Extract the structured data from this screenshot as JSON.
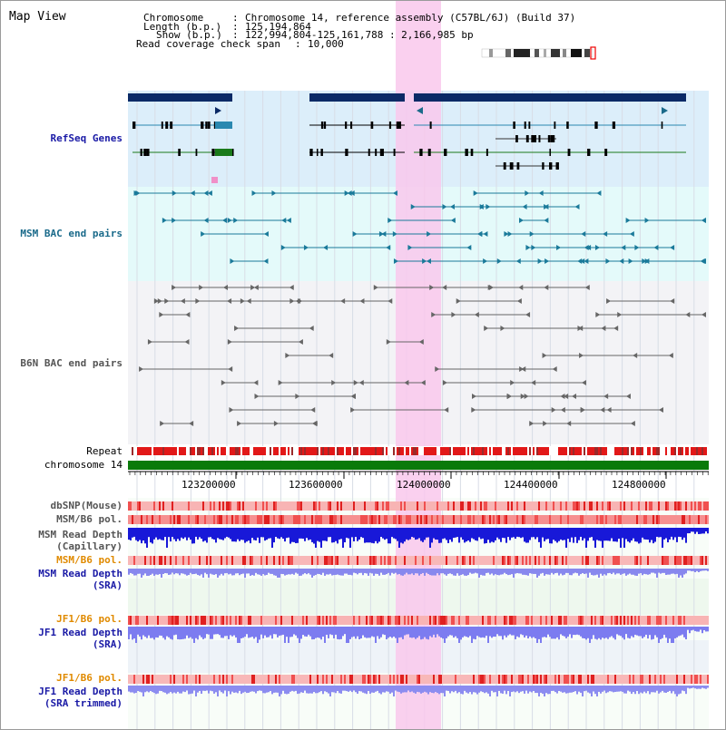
{
  "title": "Map View",
  "info": {
    "chromosome_key": "Chromosome",
    "chromosome_value": "Chromosome 14, reference assembly (C57BL/6J) (Build 37)",
    "length_key": "Length (b.p.)",
    "length_value": "125,194,864",
    "show_key": "Show (b.p.)",
    "show_value": "122,994,804-125,161,788 : 2,166,985 bp",
    "coverage_key": "Read coverage check span",
    "coverage_value": "10,000"
  },
  "tracks": {
    "refseq": "RefSeq Genes",
    "msm_bac": "MSM BAC end pairs",
    "b6n_bac": "B6N BAC end pairs",
    "repeat": "Repeat",
    "chromosome": "chromosome 14",
    "dbsnp": "dbSNP(Mouse)",
    "msm_pol_1": "MSM/B6 pol.",
    "msm_depth_cap_1": "MSM Read Depth",
    "msm_depth_cap_2": "(Capillary)",
    "msm_pol_2": "MSM/B6 pol.",
    "msm_depth_sra_1": "MSM Read Depth",
    "msm_depth_sra_2": "(SRA)",
    "jf1_pol_1": "JF1/B6 pol.",
    "jf1_depth_sra_1": "JF1 Read Depth",
    "jf1_depth_sra_2": "(SRA)",
    "jf1_pol_2": "JF1/B6 pol.",
    "jf1_depth_trim_1": "JF1 Read Depth",
    "jf1_depth_trim_2": "(SRA trimmed)"
  },
  "axis": {
    "ticks": [
      "123200000",
      "123600000",
      "124000000",
      "124400000",
      "124800000"
    ]
  },
  "colors": {
    "refseq_label": "#1a1aa6",
    "msm_label": "#1a6a8a",
    "b6n_label": "#555555",
    "pol_label": "#e08a00",
    "depth_blue": "#1a1aa6",
    "highlight": "#f9c8ec"
  }
}
